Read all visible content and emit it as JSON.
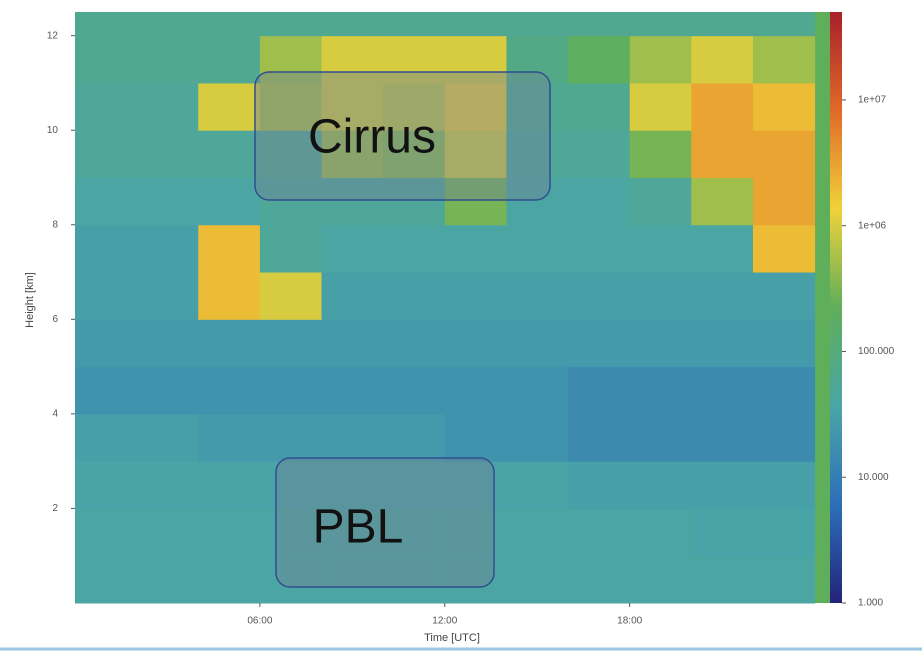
{
  "chart_data": {
    "type": "heatmap",
    "xlabel": "Time [UTC]",
    "ylabel": "Height [km]",
    "x_bins": [
      0,
      2,
      4,
      6,
      8,
      10,
      12,
      14,
      16,
      18,
      20,
      22,
      24
    ],
    "y_bins": [
      0,
      1,
      2,
      3,
      4,
      5,
      6,
      7,
      8,
      9,
      10,
      11,
      12,
      12.5
    ],
    "z": [
      [
        40000,
        40000,
        40000,
        40000,
        40000,
        40000,
        40000,
        40000,
        40000,
        40000,
        40000,
        40000
      ],
      [
        40000,
        40000,
        40000,
        40000,
        40000,
        40000,
        40000,
        40000,
        40000,
        40000,
        35000,
        35000
      ],
      [
        35000,
        35000,
        35000,
        35000,
        35000,
        35000,
        35000,
        35000,
        30000,
        30000,
        30000,
        30000
      ],
      [
        30000,
        30000,
        25000,
        25000,
        25000,
        25000,
        20000,
        20000,
        15000,
        15000,
        15000,
        15000
      ],
      [
        20000,
        20000,
        20000,
        20000,
        20000,
        20000,
        20000,
        20000,
        15000,
        15000,
        15000,
        15000
      ],
      [
        25000,
        25000,
        25000,
        25000,
        25000,
        25000,
        25000,
        25000,
        25000,
        25000,
        25000,
        25000
      ],
      [
        30000,
        30000,
        2000000,
        1000000,
        30000,
        30000,
        30000,
        30000,
        30000,
        30000,
        30000,
        30000
      ],
      [
        30000,
        30000,
        2000000,
        50000,
        40000,
        40000,
        40000,
        40000,
        40000,
        40000,
        40000,
        2000000
      ],
      [
        40000,
        40000,
        40000,
        50000,
        50000,
        50000,
        300000,
        40000,
        40000,
        50000,
        500000,
        3000000
      ],
      [
        50000,
        50000,
        50000,
        60000,
        500000,
        400000,
        1000000,
        50000,
        50000,
        300000,
        3000000,
        3000000
      ],
      [
        50000,
        50000,
        1000000,
        600000,
        1000000,
        800000,
        1500000,
        60000,
        60000,
        1000000,
        3000000,
        2000000
      ],
      [
        60000,
        60000,
        60000,
        500000,
        1000000,
        1000000,
        1000000,
        80000,
        200000,
        500000,
        1000000,
        500000
      ],
      [
        60000,
        60000,
        60000,
        60000,
        60000,
        60000,
        60000,
        60000,
        60000,
        60000,
        60000,
        60000
      ]
    ],
    "xlim": [
      0,
      24.5
    ],
    "ylim": [
      0,
      12.5
    ],
    "xticks": [
      {
        "value": 6,
        "label": "06:00"
      },
      {
        "value": 12,
        "label": "12:00"
      },
      {
        "value": 18,
        "label": "18:00"
      }
    ],
    "yticks": [
      2,
      4,
      6,
      8,
      10,
      12
    ],
    "clim": [
      1000,
      50000000
    ],
    "color_scale": "log",
    "cticks": [
      {
        "value": 1000,
        "label": "1.000"
      },
      {
        "value": 10000,
        "label": "10.000"
      },
      {
        "value": 100000,
        "label": "100.000"
      },
      {
        "value": 1000000,
        "label": "1e+06"
      },
      {
        "value": 10000000,
        "label": "1e+07"
      }
    ],
    "colormap": [
      "#23237a",
      "#2d6fb8",
      "#4aa6a6",
      "#5fae5a",
      "#f0d23a",
      "#e06a28",
      "#a8202a"
    ],
    "annotations": [
      "Cirrus",
      "PBL"
    ]
  }
}
